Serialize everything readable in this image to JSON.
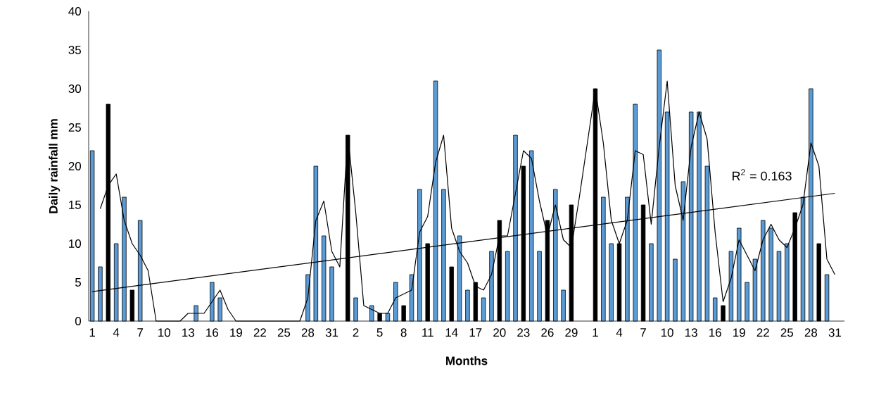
{
  "chart_data": {
    "type": "bar",
    "xlabel": "Months",
    "ylabel": "Daily rainfall mm",
    "categories": [
      "1",
      null,
      null,
      "4",
      null,
      null,
      "7",
      null,
      null,
      "10",
      null,
      null,
      "13",
      null,
      null,
      "16",
      null,
      null,
      "19",
      null,
      null,
      "22",
      null,
      null,
      "25",
      null,
      null,
      "28",
      null,
      null,
      "31",
      null,
      null,
      "2",
      null,
      null,
      "5",
      null,
      null,
      "8",
      null,
      null,
      "11",
      null,
      null,
      "14",
      null,
      null,
      "17",
      null,
      null,
      "20",
      null,
      null,
      "23",
      null,
      null,
      "26",
      null,
      null,
      "29",
      null,
      null,
      "1",
      null,
      null,
      "4",
      null,
      null,
      "7",
      null,
      null,
      "10",
      null,
      null,
      "13",
      null,
      null,
      "16",
      null,
      null,
      "19",
      null,
      null,
      "22",
      null,
      null,
      "25",
      null,
      null,
      "28",
      null,
      null,
      "31"
    ],
    "ylim": [
      0,
      40
    ],
    "yticks": [
      0,
      5,
      10,
      15,
      20,
      25,
      30,
      35,
      40
    ],
    "annotations": [
      "R$^{2}$ = 0.163"
    ],
    "series": [
      {
        "color": "#5b9bd5",
        "values": [
          22,
          7,
          null,
          10,
          16,
          null,
          13,
          null,
          null,
          null,
          null,
          null,
          null,
          2,
          null,
          5,
          3,
          null,
          null,
          null,
          null,
          null,
          null,
          null,
          null,
          null,
          null,
          6,
          20,
          11,
          7,
          null,
          null,
          3,
          null,
          2,
          null,
          1,
          5,
          null,
          6,
          17,
          null,
          31,
          17,
          null,
          11,
          4,
          null,
          3,
          9,
          null,
          9,
          24,
          null,
          22,
          9,
          null,
          17,
          4,
          null,
          null,
          null,
          null,
          16,
          10,
          null,
          16,
          28,
          null,
          10,
          35,
          27,
          8,
          18,
          27,
          27,
          20,
          3,
          null,
          9,
          12,
          5,
          8,
          13,
          12,
          9,
          10,
          null,
          16,
          30,
          null,
          6,
          null
        ]
      },
      {
        "color": "#000000",
        "values": [
          null,
          null,
          28,
          null,
          null,
          4,
          null,
          null,
          null,
          null,
          null,
          null,
          null,
          null,
          null,
          null,
          null,
          null,
          null,
          null,
          null,
          null,
          null,
          null,
          null,
          null,
          null,
          null,
          null,
          null,
          null,
          null,
          24,
          null,
          null,
          null,
          1,
          null,
          null,
          2,
          null,
          null,
          10,
          null,
          null,
          7,
          null,
          null,
          5,
          null,
          null,
          13,
          null,
          null,
          20,
          null,
          null,
          13,
          null,
          null,
          15,
          null,
          null,
          30,
          null,
          null,
          10,
          null,
          null,
          15,
          null,
          null,
          null,
          null,
          null,
          null,
          null,
          null,
          null,
          2,
          null,
          null,
          null,
          null,
          null,
          null,
          null,
          null,
          14,
          null,
          null,
          10,
          null,
          null
        ]
      },
      {
        "type": "line",
        "color": "#000000",
        "values": [
          null,
          14.5,
          17.5,
          19,
          13,
          10,
          8.5,
          6.5,
          0,
          0,
          0,
          0,
          1,
          1,
          1,
          2.5,
          4,
          1.5,
          0,
          0,
          0,
          0,
          0,
          0,
          0,
          0,
          0,
          3,
          13,
          15.5,
          9,
          7,
          24,
          14,
          2,
          1.5,
          1,
          1,
          3,
          3.5,
          4,
          11.5,
          13.5,
          20.5,
          24,
          12,
          9,
          7.5,
          4.5,
          4,
          6,
          11,
          11,
          16.5,
          22,
          21,
          15.5,
          11,
          15,
          10.5,
          9.5,
          16,
          23,
          30,
          23,
          13,
          10,
          13,
          22,
          21.5,
          12.5,
          22.5,
          31,
          17.5,
          13,
          22.5,
          27,
          23.5,
          11.5,
          2.5,
          5.5,
          10.5,
          8.5,
          6.5,
          10.5,
          12.5,
          10.5,
          9.5,
          12,
          15,
          23,
          20,
          8,
          6
        ]
      },
      {
        "type": "line",
        "color": "#000000",
        "values": [
          3.8,
          null,
          null,
          null,
          null,
          null,
          null,
          null,
          null,
          null,
          null,
          null,
          null,
          null,
          null,
          null,
          null,
          null,
          null,
          null,
          null,
          null,
          null,
          null,
          null,
          null,
          null,
          null,
          null,
          null,
          null,
          null,
          null,
          null,
          null,
          null,
          null,
          null,
          null,
          null,
          null,
          null,
          null,
          null,
          null,
          null,
          null,
          null,
          null,
          null,
          null,
          null,
          null,
          null,
          null,
          null,
          null,
          null,
          null,
          null,
          null,
          null,
          null,
          null,
          null,
          null,
          null,
          null,
          null,
          null,
          null,
          null,
          null,
          null,
          null,
          null,
          null,
          null,
          null,
          null,
          null,
          null,
          null,
          null,
          null,
          null,
          null,
          null,
          null,
          null,
          null,
          null,
          null,
          16.5
        ]
      }
    ]
  }
}
